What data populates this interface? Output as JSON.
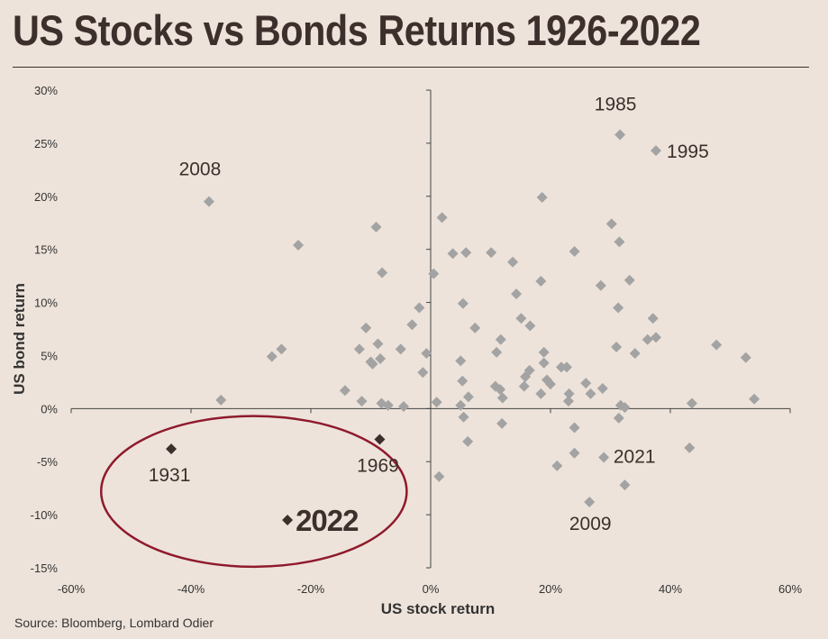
{
  "header": {
    "title": "US Stocks vs Bonds Returns 1926-2022"
  },
  "footer": {
    "source": "Source: Bloomberg, Lombard Odier"
  },
  "chart_data": {
    "type": "scatter",
    "title": "US Stocks vs Bonds Returns 1926-2022",
    "xlabel": "US stock return",
    "ylabel": "US bond return",
    "xlim": [
      -60,
      60
    ],
    "ylim": [
      -15,
      30
    ],
    "x_ticks": [
      "-60%",
      "-40%",
      "-20%",
      "0%",
      "20%",
      "40%",
      "60%"
    ],
    "y_ticks": [
      "30%",
      "25%",
      "20%",
      "15%",
      "10%",
      "5%",
      "0%",
      "-5%",
      "-10%",
      "-15%"
    ],
    "grid": false,
    "colors": {
      "points": "#a3a3a3",
      "highlight": "#3d2f2c",
      "ellipse": "#8f1a2c",
      "axis": "#444444"
    },
    "points": [
      [
        31.6,
        25.8
      ],
      [
        37.6,
        24.3
      ],
      [
        -37.0,
        19.5
      ],
      [
        18.6,
        19.9
      ],
      [
        1.9,
        18.0
      ],
      [
        -22.1,
        15.4
      ],
      [
        -9.1,
        17.1
      ],
      [
        30.2,
        17.4
      ],
      [
        31.5,
        15.7
      ],
      [
        3.7,
        14.6
      ],
      [
        5.9,
        14.7
      ],
      [
        10.1,
        14.7
      ],
      [
        24.0,
        14.8
      ],
      [
        13.7,
        13.8
      ],
      [
        -8.1,
        12.8
      ],
      [
        0.5,
        12.7
      ],
      [
        18.4,
        12.0
      ],
      [
        28.4,
        11.6
      ],
      [
        33.2,
        12.1
      ],
      [
        14.3,
        10.8
      ],
      [
        -1.9,
        9.5
      ],
      [
        5.4,
        9.9
      ],
      [
        31.3,
        9.5
      ],
      [
        15.1,
        8.5
      ],
      [
        37.1,
        8.5
      ],
      [
        -10.8,
        7.6
      ],
      [
        -3.1,
        7.9
      ],
      [
        7.4,
        7.6
      ],
      [
        16.6,
        7.8
      ],
      [
        36.2,
        6.5
      ],
      [
        37.6,
        6.7
      ],
      [
        47.7,
        6.0
      ],
      [
        11.7,
        6.5
      ],
      [
        -8.8,
        6.1
      ],
      [
        -11.9,
        5.6
      ],
      [
        -5.0,
        5.6
      ],
      [
        -24.9,
        5.6
      ],
      [
        -26.5,
        4.9
      ],
      [
        -0.7,
        5.2
      ],
      [
        11.0,
        5.3
      ],
      [
        18.9,
        5.3
      ],
      [
        31.0,
        5.8
      ],
      [
        34.1,
        5.2
      ],
      [
        52.6,
        4.8
      ],
      [
        -9.7,
        4.2
      ],
      [
        -10.0,
        4.4
      ],
      [
        -8.4,
        4.7
      ],
      [
        5.0,
        4.5
      ],
      [
        16.5,
        3.6
      ],
      [
        18.9,
        4.3
      ],
      [
        21.8,
        3.9
      ],
      [
        22.7,
        3.9
      ],
      [
        -1.3,
        3.4
      ],
      [
        15.8,
        3.0
      ],
      [
        5.3,
        2.6
      ],
      [
        20.0,
        2.3
      ],
      [
        25.9,
        2.4
      ],
      [
        -14.3,
        1.7
      ],
      [
        -35.0,
        0.8
      ],
      [
        10.8,
        2.1
      ],
      [
        11.6,
        1.8
      ],
      [
        15.6,
        2.1
      ],
      [
        19.4,
        2.7
      ],
      [
        6.3,
        1.1
      ],
      [
        12.0,
        1.0
      ],
      [
        18.4,
        1.4
      ],
      [
        23.1,
        1.4
      ],
      [
        26.7,
        1.4
      ],
      [
        28.7,
        1.9
      ],
      [
        -11.5,
        0.7
      ],
      [
        -8.2,
        0.5
      ],
      [
        -7.1,
        0.3
      ],
      [
        -4.5,
        0.2
      ],
      [
        1.0,
        0.6
      ],
      [
        5.0,
        0.3
      ],
      [
        23.0,
        0.7
      ],
      [
        31.7,
        0.3
      ],
      [
        32.4,
        0.1
      ],
      [
        43.6,
        0.5
      ],
      [
        54.0,
        0.9
      ],
      [
        5.5,
        -0.8
      ],
      [
        31.4,
        -0.9
      ],
      [
        11.9,
        -1.4
      ],
      [
        24.0,
        -1.8
      ],
      [
        6.2,
        -3.1
      ],
      [
        24.0,
        -4.2
      ],
      [
        28.9,
        -4.6
      ],
      [
        43.2,
        -3.7
      ],
      [
        21.1,
        -5.4
      ],
      [
        1.4,
        -6.4
      ],
      [
        32.4,
        -7.2
      ],
      [
        26.5,
        -8.8
      ]
    ],
    "highlights": [
      {
        "year": "1931",
        "x": -43.3,
        "y": -3.8
      },
      {
        "year": "1969",
        "x": -8.5,
        "y": -2.9
      },
      {
        "year": "2022",
        "x": -23.9,
        "y": -10.5
      }
    ],
    "annotations": [
      {
        "text": "1985",
        "x": 31.6,
        "y": 25.8
      },
      {
        "text": "1995",
        "x": 37.6,
        "y": 24.3
      },
      {
        "text": "2008",
        "x": -37.0,
        "y": 19.5
      },
      {
        "text": "2021",
        "x": 28.7,
        "y": -4.5
      },
      {
        "text": "2009",
        "x": 26.5,
        "y": -8.8
      }
    ],
    "ellipse": {
      "cx": -29.5,
      "cy": -7.8,
      "rx": 25.5,
      "ry": 7.1
    }
  }
}
